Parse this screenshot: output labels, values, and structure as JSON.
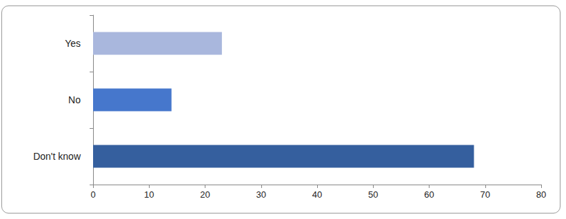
{
  "chart_data": {
    "type": "bar",
    "orientation": "horizontal",
    "categories": [
      "Yes",
      "No",
      "Don't know"
    ],
    "values": [
      23,
      14,
      68
    ],
    "colors": [
      "#a9b7dd",
      "#4677cc",
      "#355f9e"
    ],
    "xlim": [
      0,
      80
    ],
    "xticks": [
      0,
      10,
      20,
      30,
      40,
      50,
      60,
      70,
      80
    ],
    "grid": false
  }
}
